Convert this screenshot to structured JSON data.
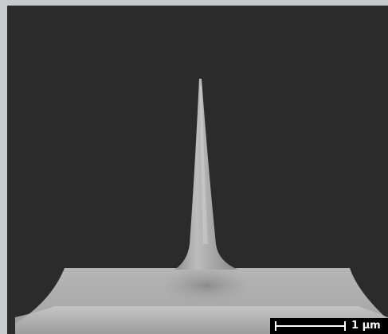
{
  "image": {
    "subject": "sem-micrograph",
    "colors": {
      "border": "#c8cbce",
      "background": "#2b2b2b",
      "specimen": "#a9a9a9"
    }
  },
  "scale_bar": {
    "label": "1 µm"
  }
}
